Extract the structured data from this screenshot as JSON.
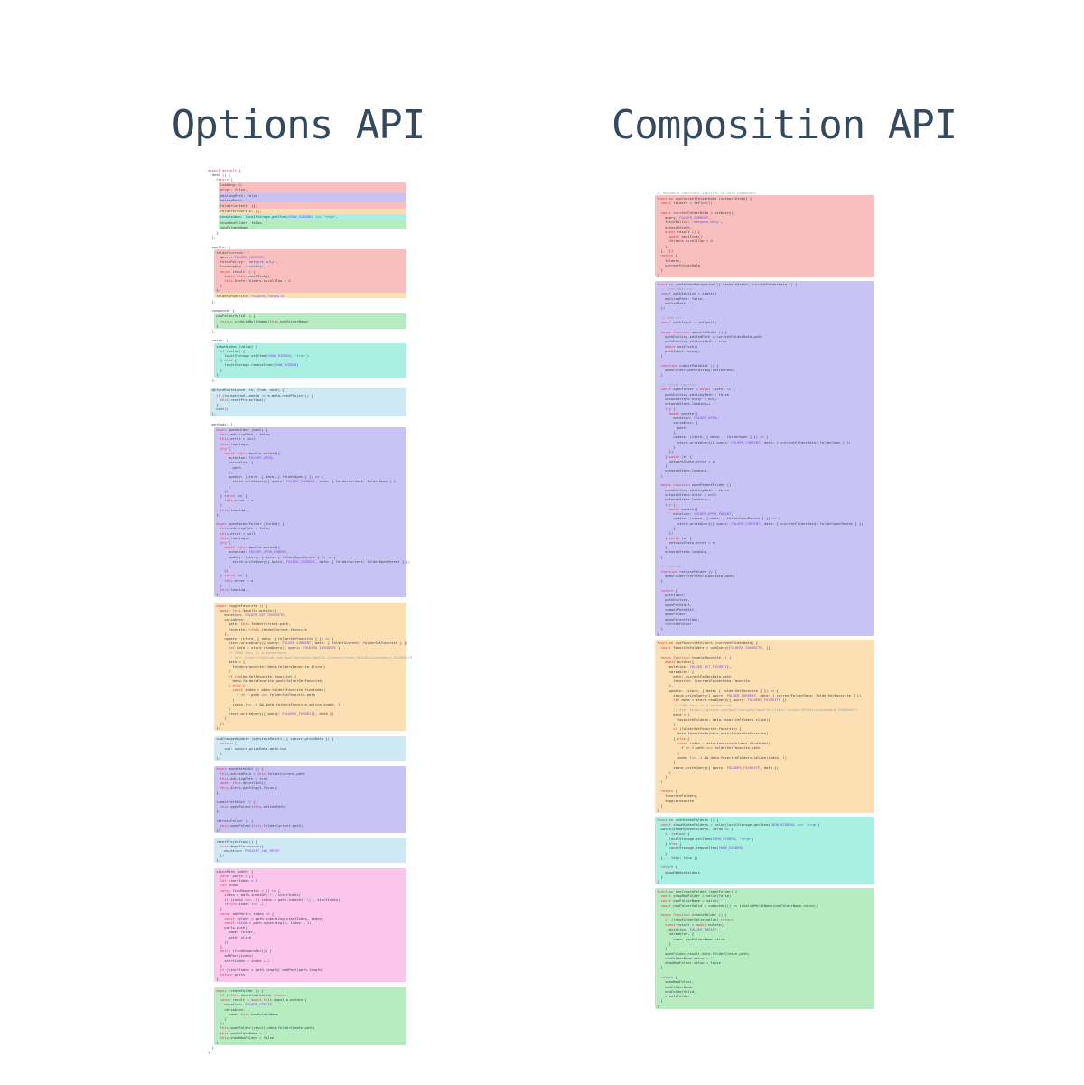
{
  "titles": {
    "left": "Options API",
    "right": "Composition API"
  },
  "title_color": "#35495e",
  "highlight_colors": {
    "plain": "transparent",
    "red": "#f9bebe",
    "purple": "#c9c3f5",
    "orange": "#fcdfb2",
    "teal": "#a9f0e3",
    "green": "#b6ecc0",
    "blue": "#cfe9f4",
    "pink": "#fbc5ec"
  },
  "columns": {
    "left": {
      "blocks": [
        {
          "color": "plain",
          "lines": [
            "export default {",
            "  data () {",
            "    return {"
          ]
        },
        {
          "color": "red",
          "lines": [
            "      loading: 0,",
            "      error: false,"
          ]
        },
        {
          "color": "purple",
          "lines": [
            "      editingPath: false,",
            "      editedPath: '',"
          ]
        },
        {
          "color": "red",
          "lines": [
            "      folderCurrent: {},"
          ]
        },
        {
          "color": "orange",
          "lines": [
            "      foldersFavorite: [],"
          ]
        },
        {
          "color": "teal",
          "lines": [
            "      showHidden: localStorage.getItem(SHOW_HIDDEN) === 'true',"
          ]
        },
        {
          "color": "green",
          "lines": [
            "      showNewFolder: false,",
            "      newFolderName: ''"
          ]
        },
        {
          "color": "plain",
          "lines": [
            "    }",
            "  },",
            "",
            "  apollo: {"
          ]
        },
        {
          "color": "red",
          "lines": [
            "    folderCurrent: {",
            "      query: FOLDER_CURRENT,",
            "      fetchPolicy: 'network-only',",
            "      loadingKey: 'loading',",
            "      async result () {",
            "        await this.$nextTick()",
            "        this.$refs.folders.scrollTop = 0",
            "      }",
            "    },"
          ]
        },
        {
          "color": "orange",
          "lines": [
            "    foldersFavorite: FOLDERS_FAVORITE"
          ]
        },
        {
          "color": "plain",
          "lines": [
            "  },",
            "",
            "  computed: {"
          ]
        },
        {
          "color": "green",
          "lines": [
            "    newFolderValid () {",
            "      return isValidMultiName(this.newFolderName)",
            "    }"
          ]
        },
        {
          "color": "plain",
          "lines": [
            "  },",
            "",
            "  watch: {"
          ]
        },
        {
          "color": "teal",
          "lines": [
            "    showHidden (value) {",
            "      if (value) {",
            "        localStorage.setItem(SHOW_HIDDEN, 'true')",
            "      } else {",
            "        localStorage.removeItem(SHOW_HIDDEN)",
            "      }",
            "    }"
          ]
        },
        {
          "color": "plain",
          "lines": [
            "  },",
            ""
          ]
        },
        {
          "color": "blue",
          "lines": [
            "  beforeRouteLeave (to, from, next) {",
            "    if (to.matched.some(m => m.meta.needProject)) {",
            "      this.resetProjectCwd()",
            "    }",
            "    next()",
            "  },"
          ]
        },
        {
          "color": "plain",
          "lines": [
            "",
            "  methods: {"
          ]
        },
        {
          "color": "purple",
          "lines": [
            "    async openFolder (path) {",
            "      this.editingPath = false",
            "      this.error = null",
            "      this.loading++",
            "      try {",
            "        await this.$apollo.mutate({",
            "          mutation: FOLDER_OPEN,",
            "          variables: {",
            "            path",
            "          },",
            "          update: (store, { data: { folderOpen } }) => {",
            "            store.writeQuery({ query: FOLDER_CURRENT, data: { folderCurrent: folderOpen } })",
            "          }",
            "        })",
            "      } catch (e) {",
            "        this.error = e",
            "      }",
            "      this.loading--",
            "    },",
            "",
            "    async openParentFolder (folder) {",
            "      this.editingPath = false",
            "      this.error = null",
            "      this.loading++",
            "      try {",
            "        await this.$apollo.mutate({",
            "          mutation: FOLDER_OPEN_PARENT,",
            "          update: (store, { data: { folderOpenParent } }) => {",
            "            store.writeQuery({ query: FOLDER_CURRENT, data: { folderCurrent: folderOpenParent } })",
            "          }",
            "        })",
            "      } catch (e) {",
            "        this.error = e",
            "      }",
            "      this.loading--",
            "    },"
          ]
        },
        {
          "color": "plain",
          "lines": [
            ""
          ]
        },
        {
          "color": "orange",
          "lines": [
            "    async toggleFavorite () {",
            "      await this.$apollo.mutate({",
            "        mutation: FOLDER_SET_FAVORITE,",
            "        variables: {",
            "          path: this.folderCurrent.path,",
            "          favorite: !this.folderCurrent.favorite",
            "        },",
            "        update: (store, { data: { folderSetFavorite } }) => {",
            "          store.writeQuery({ query: FOLDER_CURRENT, data: { folderCurrent: folderSetFavorite } })",
            "          let data = store.readQuery({ query: FOLDERS_FAVORITE })",
            "          // TODO this is a workaround",
            "          // See: https://github.com/apollographql/apollo-client/issues/4031#issuecomment-433668473",
            "          data = {",
            "            foldersFavorite: data.foldersFavorite.slice()",
            "          }",
            "          if (folderSetFavorite.favorite) {",
            "            data.foldersFavorite.push(folderSetFavorite)",
            "          } else {",
            "            const index = data.foldersFavorite.findIndex(",
            "              f => f.path === folderSetFavorite.path",
            "            )",
            "            index !== -1 && data.foldersFavorite.splice(index, 1)",
            "          }",
            "          store.writeQuery({ query: FOLDERS_FAVORITE, data })",
            "        }",
            "      })",
            "    },"
          ]
        },
        {
          "color": "plain",
          "lines": [
            ""
          ]
        },
        {
          "color": "blue",
          "lines": [
            "    cwdChangedUpdate (previousResult, { subscriptionData }) {",
            "      return {",
            "        cwd: subscriptionData.data.cwd",
            "      }",
            "    },"
          ]
        },
        {
          "color": "plain",
          "lines": [
            ""
          ]
        },
        {
          "color": "purple",
          "lines": [
            "    async openPathEdit () {",
            "      this.editedPath = this.folderCurrent.path",
            "      this.editingPath = true",
            "      await this.$nextTick()",
            "      this.$refs.pathInput.focus()",
            "    },",
            "",
            "    submitPathEdit () {",
            "      this.openFolder(this.editedPath)",
            "    },",
            "",
            "    refreshFolder () {",
            "      this.openFolder(this.folderCurrent.path)",
            "    },"
          ]
        },
        {
          "color": "plain",
          "lines": [
            ""
          ]
        },
        {
          "color": "blue",
          "lines": [
            "    resetProjectCwd () {",
            "      this.$apollo.mutate({",
            "        mutation: PROJECT_CWD_RESET",
            "      })",
            "    },"
          ]
        },
        {
          "color": "plain",
          "lines": [
            ""
          ]
        },
        {
          "color": "pink",
          "lines": [
            "    slicePath (path) {",
            "      const parts = []",
            "      let startIndex = 0",
            "      let index",
            "      const findSeparator = () => {",
            "        index = path.indexOf('/', startIndex)",
            "        if (index === -1) index = path.indexOf('\\\\', startIndex)",
            "        return index !== -1",
            "      }",
            "      const addPart = index => {",
            "        const folder = path.substring(startIndex, index)",
            "        const slice = path.substring(0, index + 1)",
            "        parts.push({",
            "          name: folder,",
            "          path: slice",
            "        })",
            "      }",
            "      while (findSeparator()) {",
            "        addPart(index)",
            "        startIndex = index + 1",
            "      }",
            "      if (startIndex < path.length) addPart(path.length)",
            "      return parts",
            "    },"
          ]
        },
        {
          "color": "plain",
          "lines": [
            ""
          ]
        },
        {
          "color": "green",
          "lines": [
            "    async createFolder () {",
            "      if (!this.newFolderValid) return",
            "      const result = await this.$apollo.mutate({",
            "        mutation: FOLDER_CREATE,",
            "        variables: {",
            "          name: this.newFolderName",
            "        }",
            "      })",
            "      this.openFolder(result.data.folderCreate.path)",
            "      this.newFolderName = ''",
            "      this.showNewFolder = false",
            "    }"
          ]
        },
        {
          "color": "plain",
          "lines": [
            "  }",
            "}"
          ]
        }
      ]
    },
    "right": {
      "blocks": [
        {
          "color": "plain",
          "lines": [
            "// Reusable functions specific to this component"
          ]
        },
        {
          "color": "red",
          "lines": [
            "function useCurrentFolderData (networkState) {",
            "  const folders = ref(null)",
            "",
            "  const currentFolderData = useQuery({",
            "    query: FOLDER_CURRENT,",
            "    fetchPolicy: 'network-only',",
            "    networkState,",
            "    async result () {",
            "      await nextTick()",
            "      folders.scrollTop = 0",
            "    }",
            "  }, {})",
            "  return {",
            "    folders,",
            "    currentFolderData",
            "  }",
            "}"
          ]
        },
        {
          "color": "purple",
          "lines": [
            "function useFolderNavigation ({ networkState, currentFolderData }) {",
            "  // Path editing",
            "  const pathEditing = state({",
            "    editingPath: false,",
            "    editedPath: '',",
            "  })",
            "",
            "  // DOM ref",
            "  const pathInput = ref(null)",
            "",
            "  async function openPathEdit () {",
            "    pathEditing.editedPath = currentFolderData.path",
            "    pathEditing.editingPath = true",
            "    await nextTick()",
            "    pathInput.focus()",
            "  }",
            "",
            "  function submitPathEdit () {",
            "    openFolder(pathEditing.editedPath)",
            "  }",
            "",
            "  // Folder opening",
            "  const openFolder = async (path) => {",
            "    pathEditing.editingPath = false",
            "    networkState.error = null",
            "    networkState.loading++",
            "    try {",
            "      await mutate({",
            "        mutation: FOLDER_OPEN,",
            "        variables: {",
            "          path",
            "        },",
            "        update: (store, { data: { folderOpen } }) => {",
            "          store.writeQuery({ query: FOLDER_CURRENT, data: { currentFolderData: folderOpen } })",
            "        }",
            "      })",
            "    } catch (e) {",
            "      networkState.error = e",
            "    }",
            "    networkState.loading--",
            "  }",
            "",
            "  async function openParentFolder () {",
            "    pathEditing.editingPath = false",
            "    networkState.error = null",
            "    networkState.loading++",
            "    try {",
            "      await mutate({",
            "        mutation: FOLDER_OPEN_PARENT,",
            "        update: (store, { data: { folderOpenParent } }) => {",
            "          store.writeQuery({ query: FOLDER_CURRENT, data: { currentFolderData: folderOpenParent } })",
            "        }",
            "      })",
            "    } catch (e) {",
            "      networkState.error = e",
            "    }",
            "    networkState.loading--",
            "  }",
            "",
            "  // Refresh",
            "  function refreshFolder () {",
            "    openFolder(currentFolderData.path)",
            "  }",
            "",
            "  return {",
            "    pathInput,",
            "    pathEditing,",
            "    openPathEdit,",
            "    submitPathEdit,",
            "    openFolder,",
            "    openParentFolder,",
            "    refreshFolder",
            "  }",
            "}"
          ]
        },
        {
          "color": "orange",
          "lines": [
            "function useFavoriteFolders (currentFolderData) {",
            "  const favoriteFolders = useQuery(FOLDERS_FAVORITE, [])",
            "",
            "  async function toggleFavorite () {",
            "    await mutate({",
            "      mutation: FOLDER_SET_FAVORITE,",
            "      variables: {",
            "        path: currentFolderData.path,",
            "        favorite: !currentFolderData.favorite",
            "      },",
            "      update: (store, { data: { folderSetFavorite } }) => {",
            "        store.writeQuery({ query: FOLDER_CURRENT, data: { currentFolderData: folderSetFavorite } })",
            "        let data = store.readQuery({ query: FOLDERS_FAVORITE })",
            "        // TODO this is a workaround",
            "        // See: https://github.com/apollographql/apollo-client/issues/4031#issuecomment-433668473",
            "        data = {",
            "          favoriteFolders: data.favoriteFolders.slice()",
            "        }",
            "        if (folderSetFavorite.favorite) {",
            "          data.favoriteFolders.push(folderSetFavorite)",
            "        } else {",
            "          const index = data.favoriteFolders.findIndex(",
            "            f => f.path === folderSetFavorite.path",
            "          )",
            "          index !== -1 && data.favoriteFolders.splice(index, 1)",
            "        }",
            "        store.writeQuery({ query: FOLDERS_FAVORITE, data })",
            "      }",
            "    })",
            "  }",
            "",
            "  return {",
            "    favoriteFolders,",
            "    toggleFavorite",
            "  }",
            "}"
          ]
        },
        {
          "color": "teal",
          "lines": [
            "function useHiddenFolders () {",
            "  const showHiddenFolders = value(localStorage.getItem(SHOW_HIDDEN) === 'true')",
            "  watch(showHiddenFolders, value => {",
            "    if (value) {",
            "      localStorage.setItem(SHOW_HIDDEN, 'true')",
            "    } else {",
            "      localStorage.removeItem(SHOW_HIDDEN)",
            "    }",
            "  }, { lazy: true })",
            "",
            "  return {",
            "    showHiddenFolders",
            "  }",
            "}"
          ]
        },
        {
          "color": "green",
          "lines": [
            "function useCreateFolder (openFolder) {",
            "  const showNewFolder = value(false)",
            "  const newFolderName = value('')",
            "  const newFolderValid = computed(() => isValidMultiName(newFolderName.value))",
            "",
            "  async function createFolder () {",
            "    if (!newFolderValid.value) return",
            "    const result = await mutate({",
            "      mutation: FOLDER_CREATE,",
            "      variables: {",
            "        name: newFolderName.value",
            "      }",
            "    })",
            "    openFolder(result.data.folderCreate.path)",
            "    newFolderName.value = ''",
            "    showNewFolder.value = false",
            "  }",
            "",
            "  return {",
            "    showNewFolder,",
            "    newFolderName,",
            "    newFolderValid,",
            "    createFolder",
            "  }",
            "}"
          ]
        }
      ]
    }
  }
}
